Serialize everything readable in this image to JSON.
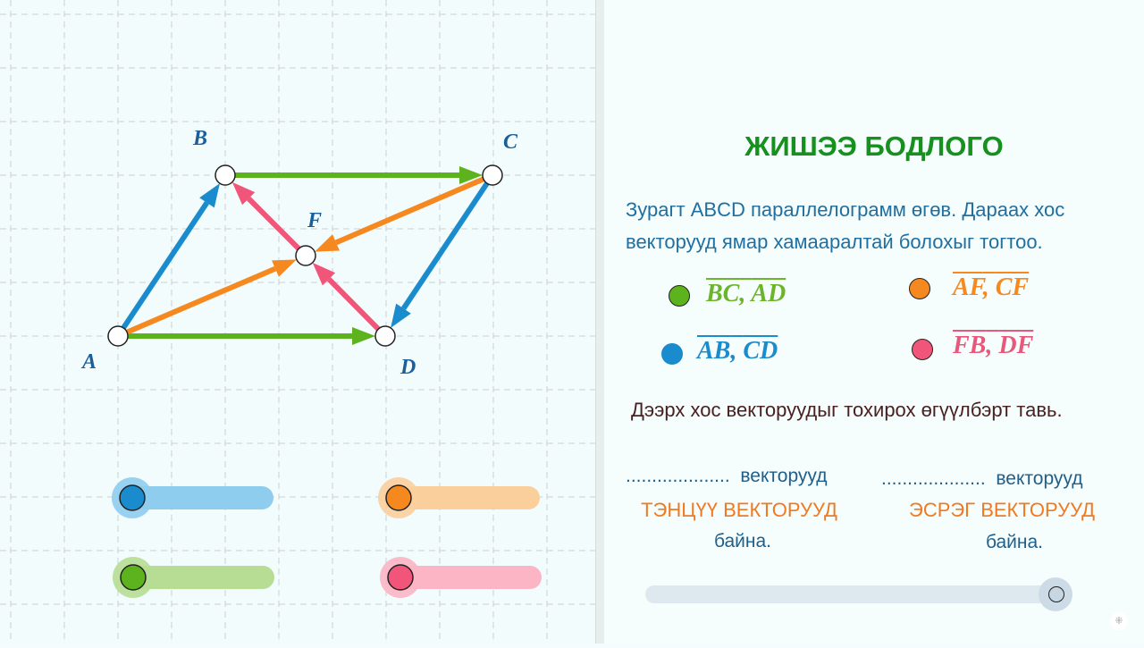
{
  "figure": {
    "points": {
      "A": "A",
      "B": "B",
      "C": "C",
      "D": "D",
      "F": "F"
    },
    "colors": {
      "green": "#5db31d",
      "blue": "#1a8bcc",
      "orange": "#f5891f",
      "red": "#f2557a"
    }
  },
  "sliders": [
    {
      "name": "blue",
      "color": "#1a8bcc",
      "track": "#8fcdee",
      "value": 0
    },
    {
      "name": "orange",
      "color": "#f5891f",
      "track": "#fbcf9c",
      "value": 0
    },
    {
      "name": "green",
      "color": "#5db31d",
      "track": "#b6dd93",
      "value": 0
    },
    {
      "name": "red",
      "color": "#f2557a",
      "track": "#fbb5c4",
      "value": 0
    }
  ],
  "panel": {
    "title": "ЖИШЭЭ БОДЛОГО",
    "problem_line1": "Зурагт ABCD параллелограмм өгөв. Дараах хос",
    "problem_line2": "векторууд ямар хамааралтай болохыг тогтоо.",
    "pairs": [
      {
        "color": "#5db31d",
        "v1": "BC",
        "v2": "AD"
      },
      {
        "color": "#f5891f",
        "v1": "AF",
        "v2": "CF"
      },
      {
        "color": "#1a8bcc",
        "v1": "AB",
        "v2": "CD"
      },
      {
        "color": "#f2557a",
        "v1": "FB",
        "v2": "DF"
      }
    ],
    "instruction": "Дээрх хос векторуудыг тохирох өгүүлбэрт тавь.",
    "blank": "....................",
    "word": "векторууд",
    "equal_label": "ТЭНЦҮҮ ВЕКТОРУУД",
    "opposite_label": "ЭСРЭГ ВЕКТОРУУД",
    "ending": "байна.",
    "slider_value": 1
  }
}
